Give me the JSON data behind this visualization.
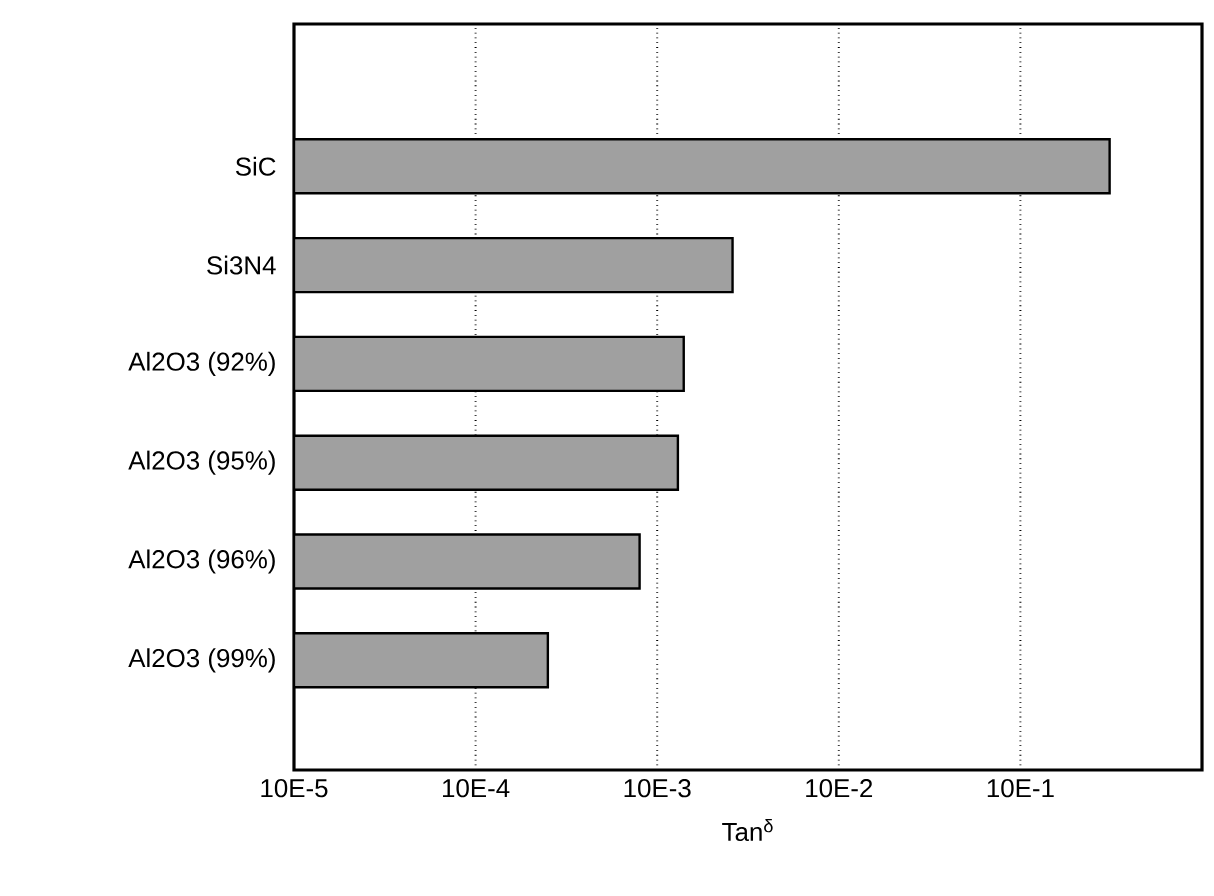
{
  "chart_data": {
    "type": "bar",
    "orientation": "horizontal",
    "log": "x",
    "xlabel": "Tan$^{δ}$",
    "categories": [
      "SiC",
      "Si3N4",
      "Al2O3 (92%)",
      "Al2O3 (95%)",
      "Al2O3 (96%)",
      "Al2O3 (99%)"
    ],
    "values": [
      3.1,
      0.026,
      0.014,
      0.013,
      0.008,
      0.0025
    ],
    "color": "#a0a0a0",
    "xlim": [
      0.0001,
      10
    ],
    "xticks": [
      {
        "value": 0.0001,
        "label": "10E-5"
      },
      {
        "value": 0.001,
        "label": "10E-4"
      },
      {
        "value": 0.01,
        "label": "10E-3"
      },
      {
        "value": 0.1,
        "label": "10E-2"
      },
      {
        "value": 1,
        "label": "10E-1"
      }
    ],
    "grid": "x"
  }
}
